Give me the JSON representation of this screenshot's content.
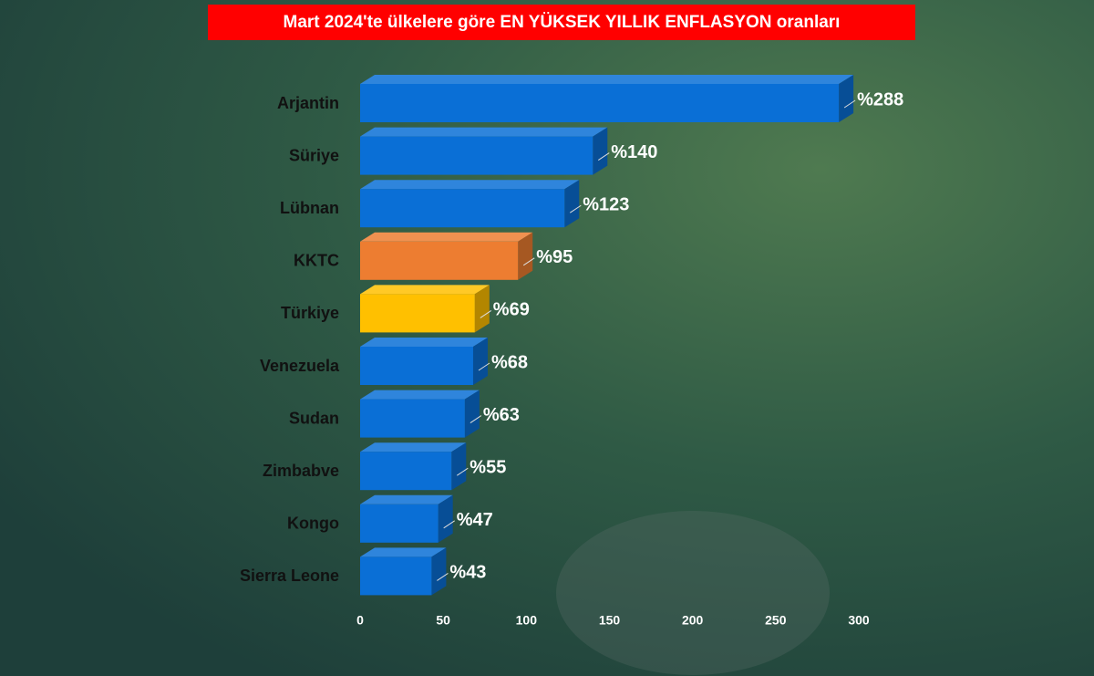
{
  "chart_data": {
    "type": "bar",
    "orientation": "horizontal",
    "title": "Mart 2024'te ülkelere göre EN YÜKSEK YILLIK ENFLASYON oranları",
    "categories": [
      "Arjantin",
      "Süriye",
      "Lübnan",
      "KKTC",
      "Türkiye",
      "Venezuela",
      "Sudan",
      "Zimbabve",
      "Kongo",
      "Sierra Leone"
    ],
    "values": [
      288,
      140,
      123,
      95,
      69,
      68,
      63,
      55,
      47,
      43
    ],
    "value_labels": [
      "%288",
      "%140",
      "%123",
      "%95",
      "%69",
      "%68",
      "%63",
      "%55",
      "%47",
      "%43"
    ],
    "colors": [
      "#0a6fd6",
      "#0a6fd6",
      "#0a6fd6",
      "#ed7d31",
      "#ffc000",
      "#0a6fd6",
      "#0a6fd6",
      "#0a6fd6",
      "#0a6fd6",
      "#0a6fd6"
    ],
    "xlim": [
      0,
      300
    ],
    "xticks": [
      0,
      50,
      100,
      150,
      200,
      250,
      300
    ],
    "grid": false
  }
}
